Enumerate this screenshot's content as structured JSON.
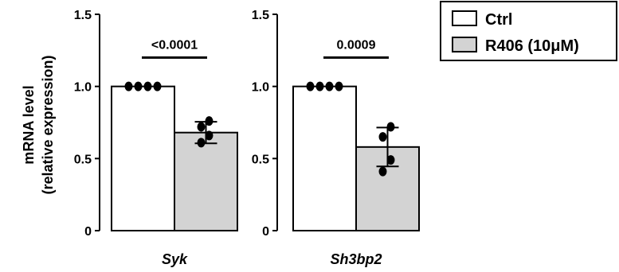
{
  "chart_data": {
    "type": "bar",
    "ylabel": [
      "mRNA level",
      "(relative expression)"
    ],
    "ylim": [
      0,
      1.5
    ],
    "yticks": [
      {
        "value": 0,
        "label": "0"
      },
      {
        "value": 0.5,
        "label": "0.5"
      },
      {
        "value": 1.0,
        "label": "1.0"
      },
      {
        "value": 1.5,
        "label": "1.5"
      }
    ],
    "legend": {
      "placement": "top-right",
      "entries": [
        {
          "name": "Ctrl",
          "color": "#ffffff"
        },
        {
          "name": "R406 (10μM)",
          "color": "#d3d3d3"
        }
      ]
    },
    "panels": [
      {
        "category": "Syk",
        "pvalue": "<0.0001",
        "bars": [
          {
            "series": "Ctrl",
            "mean": 1.0,
            "sd": 0,
            "points": [
              1.0,
              1.0,
              1.0,
              1.0
            ]
          },
          {
            "series": "R406 (10μM)",
            "mean": 0.68,
            "sd": 0.075,
            "points": [
              0.76,
              0.72,
              0.66,
              0.61
            ]
          }
        ]
      },
      {
        "category": "Sh3bp2",
        "pvalue": "0.0009",
        "bars": [
          {
            "series": "Ctrl",
            "mean": 1.0,
            "sd": 0,
            "points": [
              1.0,
              1.0,
              1.0,
              1.0
            ]
          },
          {
            "series": "R406 (10μM)",
            "mean": 0.58,
            "sd": 0.135,
            "points": [
              0.72,
              0.65,
              0.49,
              0.41
            ]
          }
        ]
      }
    ]
  }
}
